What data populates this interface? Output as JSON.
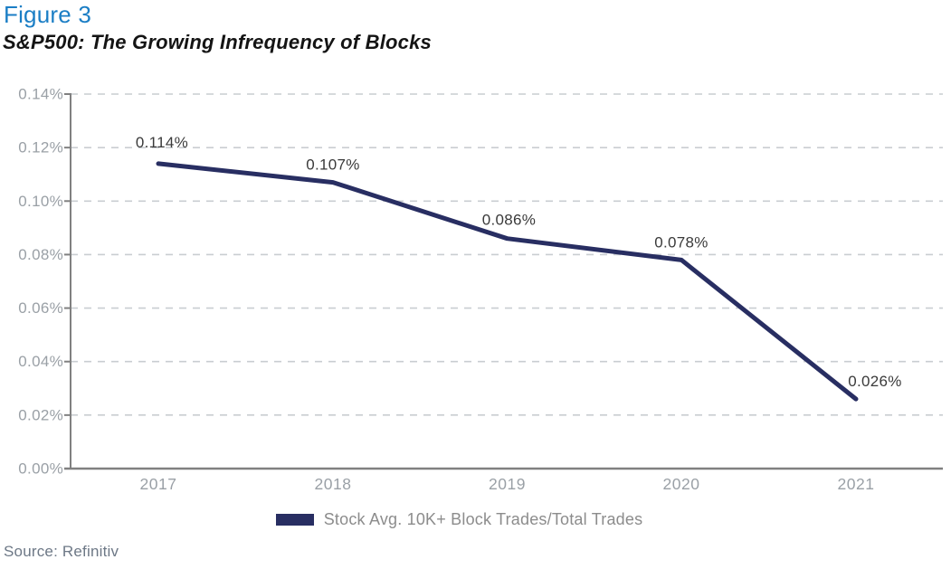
{
  "header": {
    "figure_label": "Figure 3",
    "title": "S&P500: The Growing Infrequency of Blocks"
  },
  "chart_data": {
    "type": "line",
    "title": "S&P500: The Growing Infrequency of Blocks",
    "categories": [
      "2017",
      "2018",
      "2019",
      "2020",
      "2021"
    ],
    "series": [
      {
        "name": "Stock Avg. 10K+ Block Trades/Total Trades",
        "values": [
          0.114,
          0.107,
          0.086,
          0.078,
          0.026
        ],
        "point_labels": [
          "0.114%",
          "0.107%",
          "0.086%",
          "0.078%",
          "0.026%"
        ]
      }
    ],
    "xlabel": "",
    "ylabel": "",
    "ylim": [
      0,
      0.14
    ],
    "ytick_step": 0.02,
    "ytick_labels": [
      "0.00%",
      "0.02%",
      "0.04%",
      "0.06%",
      "0.08%",
      "0.10%",
      "0.12%",
      "0.14%"
    ],
    "grid": "dashed-horizontal",
    "legend_position": "bottom-center"
  },
  "legend": {
    "label": "Stock Avg. 10K+ Block Trades/Total Trades"
  },
  "footer": {
    "source": "Source: Refinitiv"
  },
  "colors": {
    "figure_label": "#1b7ec5",
    "line": "#282e62",
    "axis": "#808080",
    "gridline": "#c9cdd1",
    "tick_label": "#9aa0a6",
    "data_label": "#3a3a3a",
    "legend_text": "#8c8c8c",
    "source_text": "#6d7886"
  }
}
